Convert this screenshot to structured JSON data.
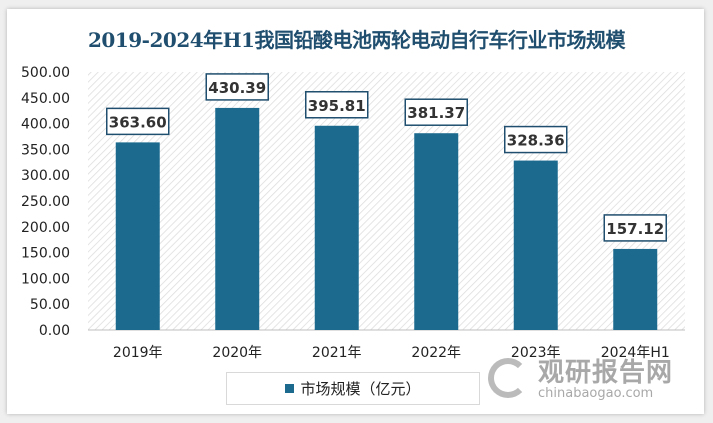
{
  "chart_data": {
    "type": "bar",
    "title": "2019-2024年H1我国铅酸电池两轮电动自行车行业市场规模",
    "categories": [
      "2019年",
      "2020年",
      "2021年",
      "2022年",
      "2023年",
      "2024年H1"
    ],
    "series": [
      {
        "name": "市场规模（亿元）",
        "values": [
          363.6,
          430.39,
          395.81,
          381.37,
          328.36,
          157.12
        ]
      }
    ],
    "value_labels": [
      "363.60",
      "430.39",
      "395.81",
      "381.37",
      "328.36",
      "157.12"
    ],
    "ylim": [
      0,
      500
    ],
    "yticks": [
      "0.00",
      "50.00",
      "100.00",
      "150.00",
      "200.00",
      "250.00",
      "300.00",
      "350.00",
      "400.00",
      "450.00",
      "500.00"
    ],
    "grid": false,
    "legend_placement": "bottom",
    "colors": {
      "bar": "#1c6b8f",
      "title": "#1f4e6e"
    }
  },
  "watermark": {
    "cn": "观研报告网",
    "en": "chinabaogao.com"
  }
}
